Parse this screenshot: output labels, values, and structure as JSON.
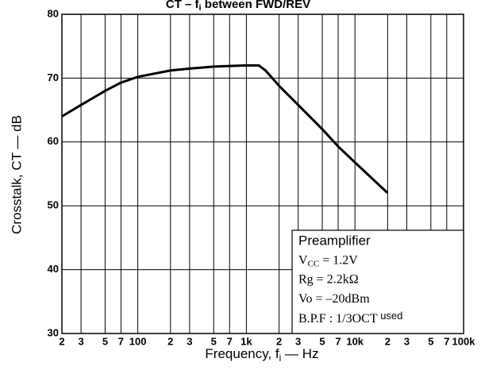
{
  "chart_data": {
    "type": "line",
    "title": "CT – f",
    "title_sub": "i",
    "title_rest": " between FWD/REV",
    "xlabel": "Frequency, f",
    "xlabel_sub": "i",
    "xlabel_rest": " — Hz",
    "ylabel": "Crosstalk, CT — dB",
    "x": [
      20,
      30,
      50,
      70,
      100,
      200,
      300,
      500,
      700,
      1000,
      1300,
      1500,
      2000,
      3000,
      5000,
      7000,
      10000,
      20000
    ],
    "values": [
      64,
      65.8,
      68,
      69.3,
      70.2,
      71.2,
      71.5,
      71.8,
      71.9,
      72,
      72,
      71.2,
      68.8,
      65.8,
      62,
      59.3,
      56.8,
      52
    ],
    "color": "#000000",
    "xlog": true,
    "xlim": [
      20,
      100000
    ],
    "xticks": [
      {
        "value": 20,
        "label": "2"
      },
      {
        "value": 30,
        "label": "3"
      },
      {
        "value": 50,
        "label": "5"
      },
      {
        "value": 70,
        "label": "7"
      },
      {
        "value": 100,
        "label": "100"
      },
      {
        "value": 200,
        "label": "2"
      },
      {
        "value": 300,
        "label": "3"
      },
      {
        "value": 500,
        "label": "5"
      },
      {
        "value": 700,
        "label": "7"
      },
      {
        "value": 1000,
        "label": "1k"
      },
      {
        "value": 2000,
        "label": "2"
      },
      {
        "value": 3000,
        "label": "3"
      },
      {
        "value": 5000,
        "label": "5"
      },
      {
        "value": 7000,
        "label": "7"
      },
      {
        "value": 10000,
        "label": "10k"
      },
      {
        "value": 20000,
        "label": "2"
      },
      {
        "value": 30000,
        "label": "3"
      },
      {
        "value": 50000,
        "label": "5"
      },
      {
        "value": 70000,
        "label": "7"
      },
      {
        "value": 100000,
        "label": "100k"
      }
    ],
    "ylim": [
      30,
      80
    ],
    "yticks": [
      30,
      40,
      50,
      60,
      70,
      80
    ],
    "grid": true,
    "annotation": [
      "Preamplifier",
      {
        "text": "V",
        "sub": "CC",
        "rest": " = 1.2V"
      },
      "Rg = 2.2kΩ",
      "Vo = –20dBm",
      {
        "text": "B.P.F : 1/3OCT",
        "rest": " used"
      }
    ]
  }
}
